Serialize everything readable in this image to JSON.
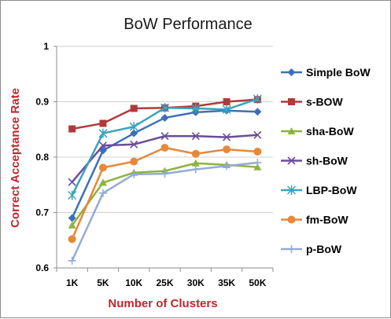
{
  "chart_data": {
    "type": "line",
    "title": "BoW Performance",
    "xlabel": "Number of Clusters",
    "ylabel": "Correct Acceptance Rate",
    "categories": [
      "1K",
      "5K",
      "10K",
      "25K",
      "30K",
      "35K",
      "50K"
    ],
    "ylim": [
      0.6,
      1.0
    ],
    "yticks": [
      "0.6",
      "0.7",
      "0.8",
      "0.9",
      "1"
    ],
    "grid": true,
    "legend_position": "right",
    "series": [
      {
        "name": "Simple BoW",
        "color": "#3d6fb8",
        "marker": "diamond",
        "values": [
          0.69,
          0.812,
          0.843,
          0.871,
          0.881,
          0.884,
          0.882
        ]
      },
      {
        "name": "s-BOW",
        "color": "#b03a3a",
        "marker": "square",
        "values": [
          0.851,
          0.861,
          0.888,
          0.889,
          0.892,
          0.9,
          0.904
        ]
      },
      {
        "name": "sha-BoW",
        "color": "#8cb43c",
        "marker": "triangle",
        "values": [
          0.677,
          0.754,
          0.772,
          0.775,
          0.789,
          0.786,
          0.782
        ]
      },
      {
        "name": "sh-BoW",
        "color": "#6b4c99",
        "marker": "x",
        "values": [
          0.755,
          0.821,
          0.823,
          0.838,
          0.838,
          0.836,
          0.84
        ]
      },
      {
        "name": "LBP-BoW",
        "color": "#3aa3be",
        "marker": "asterisk",
        "values": [
          0.731,
          0.843,
          0.855,
          0.889,
          0.888,
          0.886,
          0.905
        ]
      },
      {
        "name": "fm-BoW",
        "color": "#e6883a",
        "marker": "circle",
        "values": [
          0.652,
          0.781,
          0.792,
          0.817,
          0.806,
          0.814,
          0.81
        ]
      },
      {
        "name": "p-BoW",
        "color": "#93abd6",
        "marker": "plus",
        "values": [
          0.613,
          0.735,
          0.769,
          0.77,
          0.778,
          0.784,
          0.79
        ]
      }
    ]
  }
}
